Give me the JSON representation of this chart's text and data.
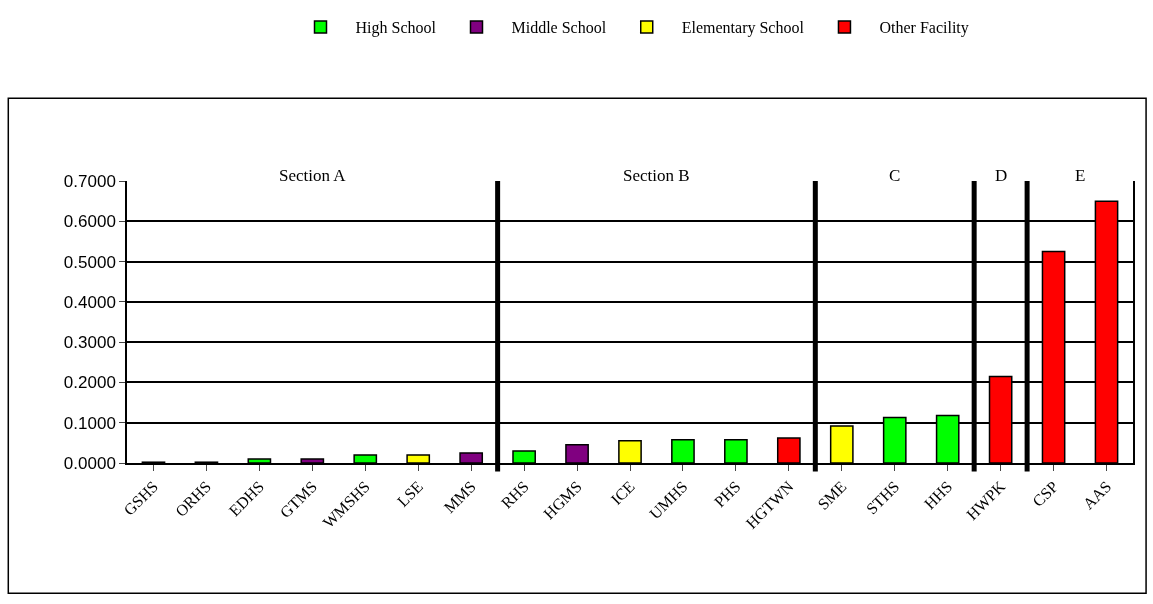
{
  "chart_data": {
    "type": "bar",
    "categories": [
      "GSHS",
      "ORHS",
      "EDHS",
      "GTMS",
      "WMSHS",
      "LSE",
      "MMS",
      "RHS",
      "HGMS",
      "ICE",
      "UMHS",
      "PHS",
      "HGTWN",
      "SME",
      "STHS",
      "HHS",
      "HWPK",
      "CSP",
      "AAS"
    ],
    "series": [
      {
        "name": "High School",
        "color": "#00ff00",
        "values": [
          0.002,
          0.002,
          0.01,
          null,
          0.02,
          null,
          null,
          0.03,
          null,
          null,
          0.058,
          0.058,
          null,
          null,
          0.113,
          0.118,
          null,
          null,
          null
        ]
      },
      {
        "name": "Middle School",
        "color": "#800080",
        "values": [
          null,
          null,
          null,
          0.01,
          null,
          null,
          0.025,
          null,
          0.045,
          null,
          null,
          null,
          null,
          null,
          null,
          null,
          null,
          null,
          null
        ]
      },
      {
        "name": "Elementary School",
        "color": "#ffff00",
        "values": [
          null,
          null,
          null,
          null,
          null,
          0.02,
          null,
          null,
          null,
          0.055,
          null,
          null,
          null,
          0.092,
          null,
          null,
          null,
          null,
          null
        ]
      },
      {
        "name": "Other Facility",
        "color": "#ff0000",
        "values": [
          null,
          null,
          null,
          null,
          null,
          null,
          null,
          null,
          null,
          null,
          null,
          null,
          0.062,
          null,
          null,
          null,
          0.215,
          0.525,
          0.65
        ]
      }
    ],
    "ylim": [
      0,
      0.7
    ],
    "yticks": [
      {
        "value": 0,
        "label": "0.0000"
      },
      {
        "value": 0.1,
        "label": "0.1000"
      },
      {
        "value": 0.2,
        "label": "0.2000"
      },
      {
        "value": 0.3,
        "label": "0.3000"
      },
      {
        "value": 0.4,
        "label": "0.4000"
      },
      {
        "value": 0.5,
        "label": "0.5000"
      },
      {
        "value": 0.6,
        "label": "0.6000"
      },
      {
        "value": 0.7,
        "label": "0.7000"
      }
    ],
    "grid": "y",
    "legend": "top",
    "annotations": [
      "Section A",
      "Section B",
      "C",
      "D",
      "E"
    ]
  }
}
